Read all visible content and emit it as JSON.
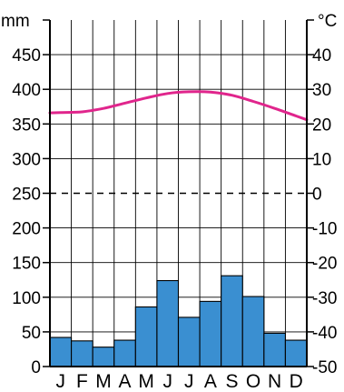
{
  "chart_data": {
    "type": "bar",
    "title": "",
    "categories": [
      "J",
      "F",
      "M",
      "A",
      "M",
      "J",
      "J",
      "A",
      "S",
      "O",
      "N",
      "D"
    ],
    "precipitation": {
      "unit": "mm",
      "values": [
        42,
        37,
        28,
        38,
        86,
        124,
        71,
        94,
        131,
        101,
        48,
        38
      ],
      "color": "#3a8fd1"
    },
    "temperature": {
      "unit": "°C",
      "values": [
        23.3,
        23.5,
        24.5,
        26.0,
        27.5,
        28.8,
        29.3,
        29.2,
        28.3,
        26.5,
        24.5,
        22.3
      ],
      "color": "#e0258c"
    },
    "left_axis": {
      "min": 0,
      "max": 500,
      "ticks": [
        "0",
        "50",
        "100",
        "150",
        "200",
        "250",
        "300",
        "350",
        "400",
        "450"
      ]
    },
    "right_axis": {
      "min": -50,
      "max": 50,
      "ticks": [
        "-50",
        "-40",
        "-30",
        "-20",
        "-10",
        "0",
        "10",
        "20",
        "30",
        "40"
      ]
    },
    "zero_line_mm": 250,
    "grid": true,
    "legend": "none"
  }
}
